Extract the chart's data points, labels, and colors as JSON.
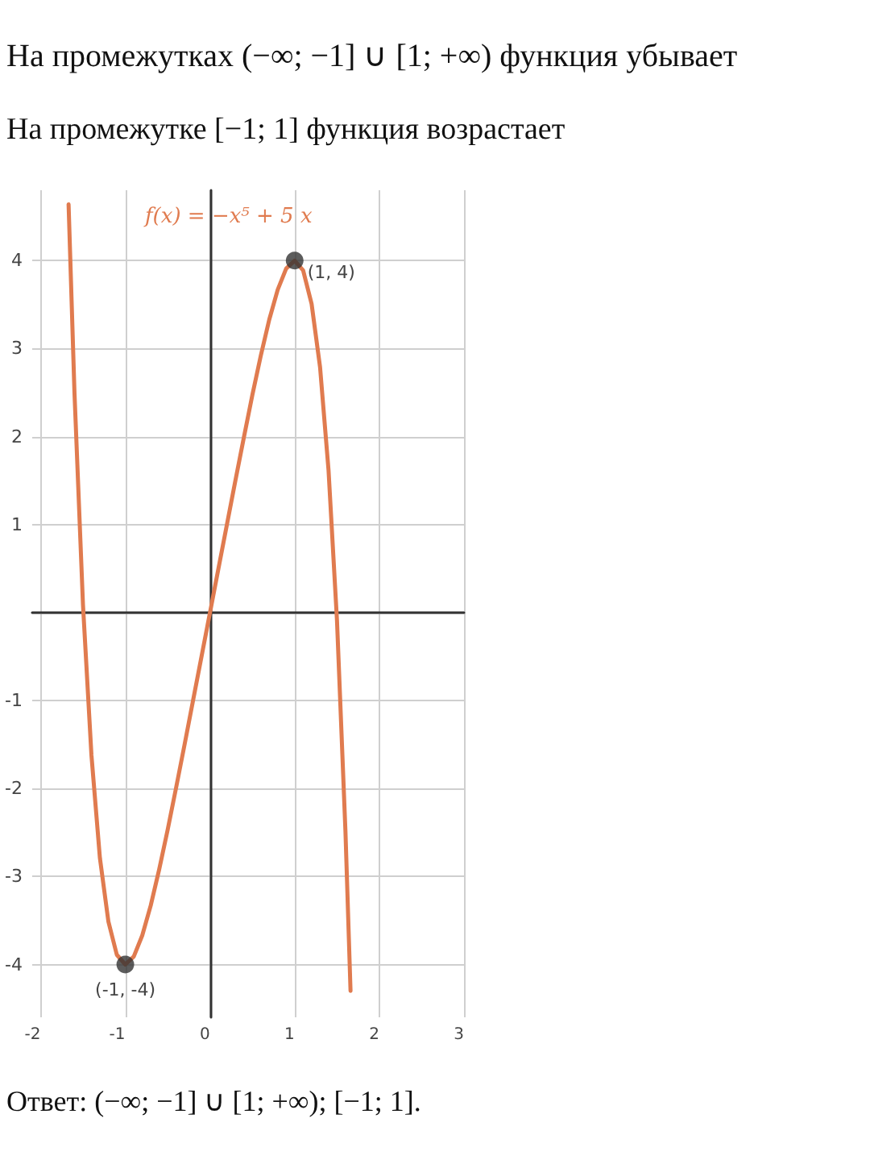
{
  "chart_data": {
    "type": "line",
    "title": "На промежутках (−∞; −1] ∪ [1; +∞) функция убывает",
    "subtitle": "На промежутке [−1; 1] функция возрастает",
    "annotations": [
      "Ответ: (−∞; −1] ∪ [1; +∞);  [−1; 1].",
      {
        "text": "(1, 4)",
        "x": 1,
        "y": 4
      },
      {
        "text": "(-1, -4)",
        "x": -1,
        "y": -4
      }
    ],
    "series": [
      {
        "name": "f(x) = −x⁵ + 5 x",
        "color": "#e07b4f",
        "x": [
          -1.67,
          -1.6,
          -1.5,
          -1.4,
          -1.3,
          -1.2,
          -1.1,
          -1,
          -0.9,
          -0.8,
          -0.7,
          -0.6,
          -0.5,
          -0.4,
          -0.3,
          -0.2,
          -0.1,
          0,
          0.1,
          0.2,
          0.3,
          0.4,
          0.5,
          0.6,
          0.7,
          0.8,
          0.9,
          1,
          1.1,
          1.2,
          1.3,
          1.4,
          1.5,
          1.6,
          1.66
        ],
        "values": [
          4.64,
          2.49,
          0.09,
          -1.62,
          -2.79,
          -3.51,
          -3.89,
          -4,
          -3.91,
          -3.67,
          -3.33,
          -2.92,
          -2.47,
          -1.99,
          -1.5,
          -1,
          -0.5,
          0,
          0.5,
          1,
          1.5,
          1.99,
          2.47,
          2.92,
          3.33,
          3.67,
          3.91,
          4,
          3.89,
          3.51,
          2.79,
          1.62,
          -0.09,
          -2.49,
          -4.3
        ]
      },
      {
        "type": "scatter",
        "color": "#333333",
        "marker": "circle",
        "x": [
          -1,
          1
        ],
        "values": [
          -4,
          4
        ]
      }
    ],
    "xlim": [
      -2.1,
      3
    ],
    "ylim": [
      -4.6,
      4.8
    ],
    "xticks": [
      -2,
      -1,
      0,
      1,
      2,
      3
    ],
    "yticks": [
      -4,
      -3,
      -2,
      -1,
      {
        "value": 0,
        "label": null
      },
      1,
      2,
      3,
      4
    ],
    "grid": true,
    "legend": false,
    "marker": "none",
    "line_style": "solid"
  }
}
